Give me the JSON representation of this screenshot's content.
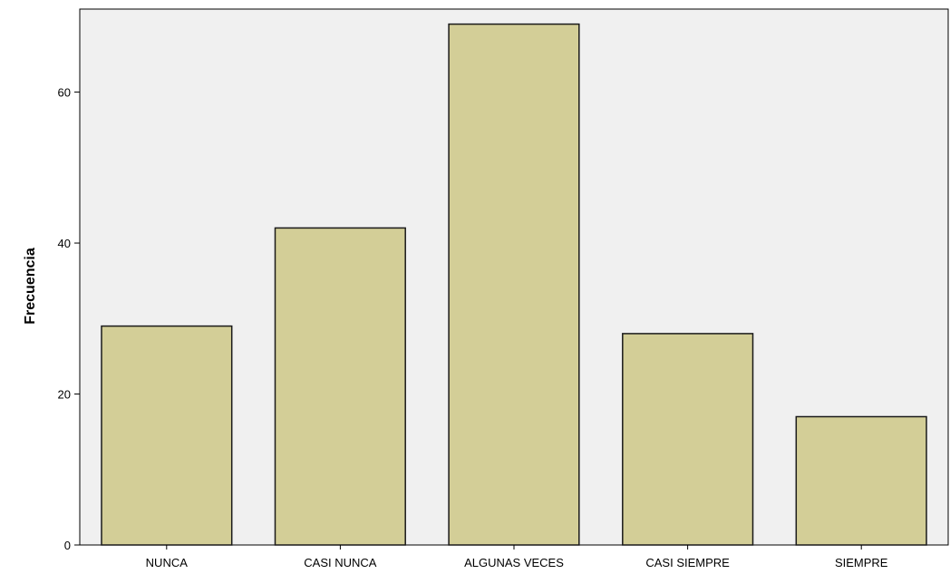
{
  "chart_data": {
    "type": "bar",
    "title": "",
    "xlabel": "",
    "ylabel": "Frecuencia",
    "categories": [
      "NUNCA",
      "CASI NUNCA",
      "ALGUNAS VECES",
      "CASI SIEMPRE",
      "SIEMPRE"
    ],
    "values": [
      29,
      42,
      69,
      28,
      17
    ],
    "ylim": [
      0,
      71
    ],
    "yticks": [
      0,
      20,
      40,
      60
    ],
    "grid": false,
    "legend": "none",
    "colors": {
      "plot_background": "#f0f0f0",
      "bar_fill": "#d3ce97",
      "bar_stroke": "#1a1a1a",
      "axis": "#000000"
    }
  }
}
